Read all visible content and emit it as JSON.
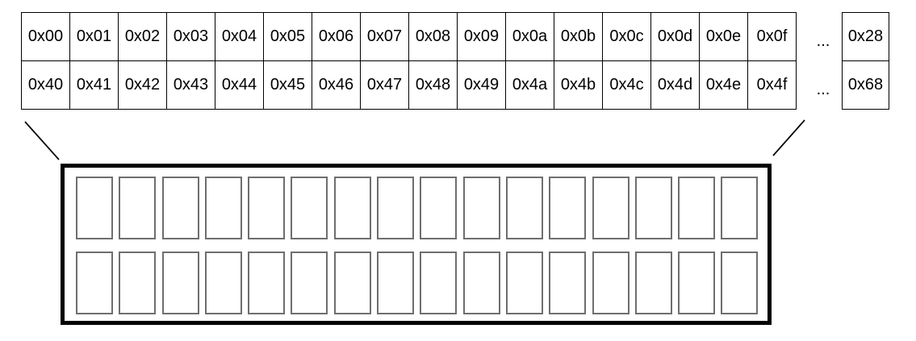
{
  "address_table": {
    "row1": [
      "0x00",
      "0x01",
      "0x02",
      "0x03",
      "0x04",
      "0x05",
      "0x06",
      "0x07",
      "0x08",
      "0x09",
      "0x0a",
      "0x0b",
      "0x0c",
      "0x0d",
      "0x0e",
      "0x0f"
    ],
    "row2": [
      "0x40",
      "0x41",
      "0x42",
      "0x43",
      "0x44",
      "0x45",
      "0x46",
      "0x47",
      "0x48",
      "0x49",
      "0x4a",
      "0x4b",
      "0x4c",
      "0x4d",
      "0x4e",
      "0x4f"
    ],
    "ellipsis": "...",
    "tail_row1": "0x28",
    "tail_row2": "0x68"
  },
  "zoom_box": {
    "rows": 2,
    "cells_per_row": 16
  },
  "colors": {
    "line": "#000000",
    "table_border": "#000000",
    "slot_border": "#6e6e6e",
    "background": "#ffffff"
  }
}
